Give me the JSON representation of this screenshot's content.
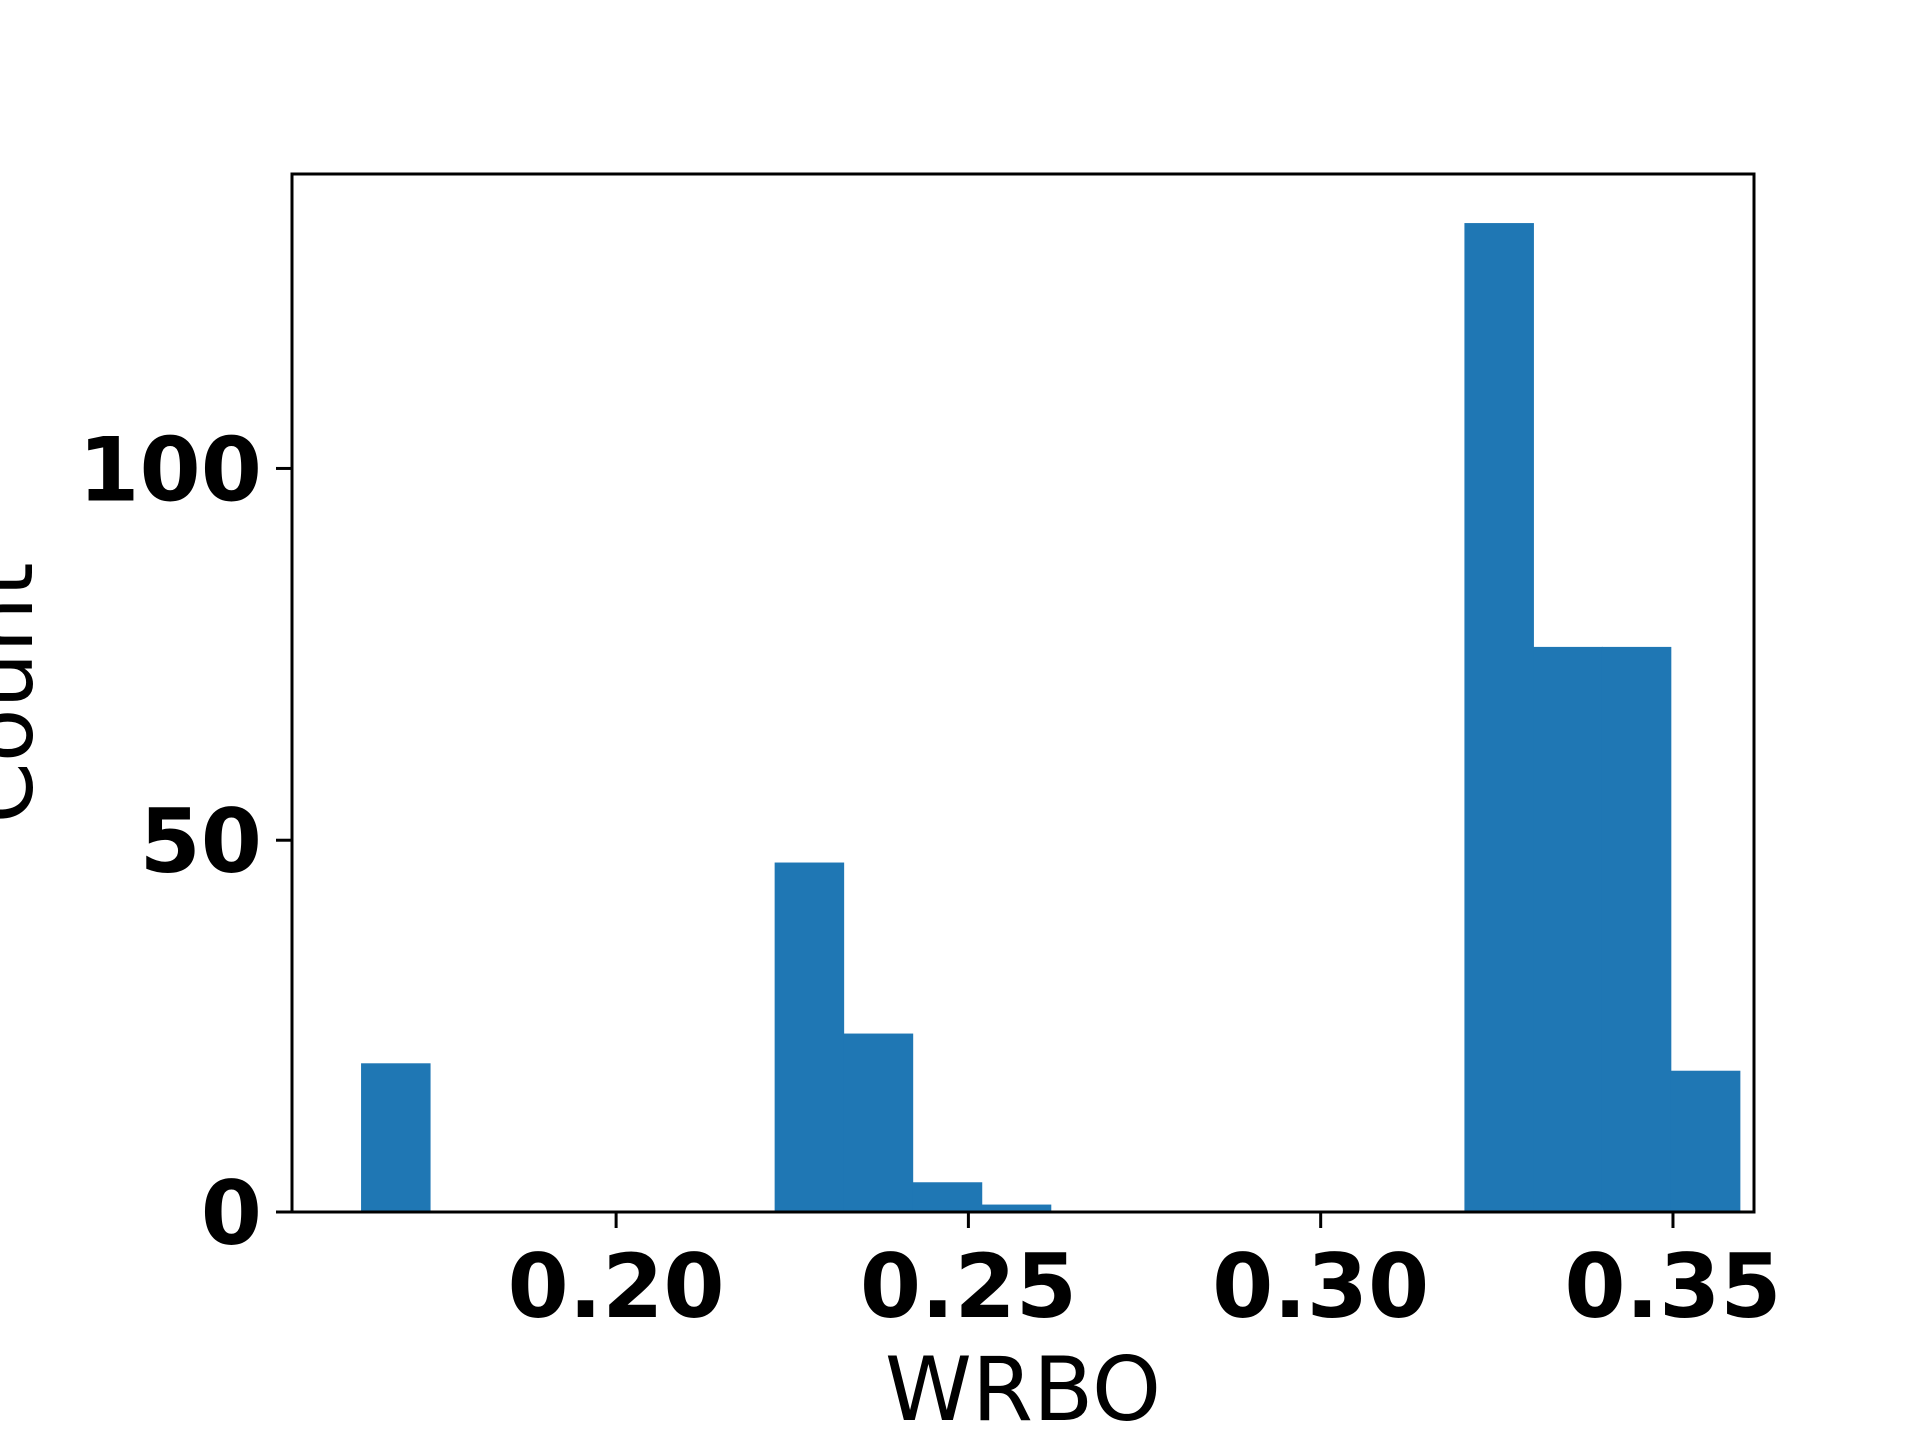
{
  "chart_data": {
    "type": "bar",
    "xlabel": "WRBO",
    "ylabel": "Count",
    "xlim": [
      0.154,
      0.3615
    ],
    "ylim": [
      0,
      139.6
    ],
    "x_ticks": [
      {
        "value": 0.2,
        "label": "0.20"
      },
      {
        "value": 0.25,
        "label": "0.25"
      },
      {
        "value": 0.3,
        "label": "0.30"
      },
      {
        "value": 0.35,
        "label": "0.35"
      }
    ],
    "y_ticks": [
      {
        "value": 0,
        "label": "0"
      },
      {
        "value": 50,
        "label": "50"
      },
      {
        "value": 100,
        "label": "100"
      }
    ],
    "bin_width": 0.00978,
    "series": [
      {
        "color": "#1f77b4",
        "bins": [
          {
            "x_start": 0.1638,
            "count": 20
          },
          {
            "x_start": 0.1736,
            "count": 0
          },
          {
            "x_start": 0.1834,
            "count": 0
          },
          {
            "x_start": 0.1931,
            "count": 0
          },
          {
            "x_start": 0.2029,
            "count": 0
          },
          {
            "x_start": 0.2127,
            "count": 0
          },
          {
            "x_start": 0.2225,
            "count": 47
          },
          {
            "x_start": 0.2323,
            "count": 24
          },
          {
            "x_start": 0.2421,
            "count": 4
          },
          {
            "x_start": 0.2519,
            "count": 1
          },
          {
            "x_start": 0.2617,
            "count": 0
          },
          {
            "x_start": 0.2714,
            "count": 0
          },
          {
            "x_start": 0.2812,
            "count": 0
          },
          {
            "x_start": 0.291,
            "count": 0
          },
          {
            "x_start": 0.3008,
            "count": 0
          },
          {
            "x_start": 0.3106,
            "count": 0
          },
          {
            "x_start": 0.3204,
            "count": 133
          },
          {
            "x_start": 0.3302,
            "count": 76
          },
          {
            "x_start": 0.3399,
            "count": 76
          },
          {
            "x_start": 0.3497,
            "count": 19
          }
        ]
      }
    ]
  }
}
